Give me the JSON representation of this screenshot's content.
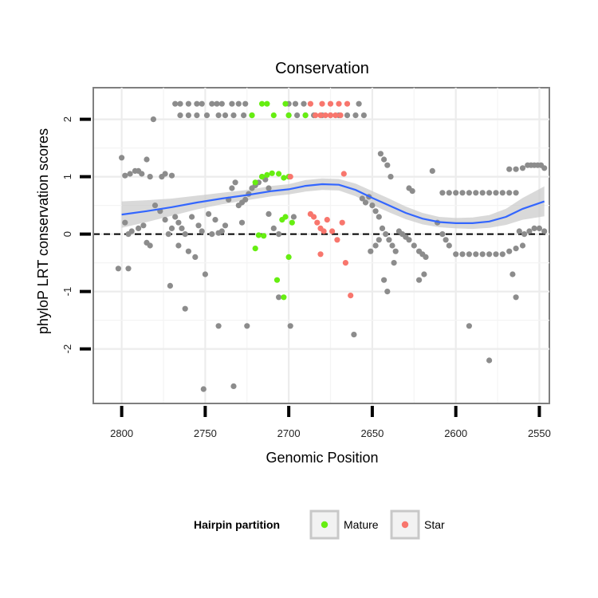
{
  "chart_data": {
    "type": "scatter",
    "title": "Conservation",
    "xlabel": "Genomic Position",
    "ylabel": "phyloP LRT conservation scores",
    "x_reversed": true,
    "xlim": [
      2817,
      2544
    ],
    "ylim": [
      -2.95,
      2.55
    ],
    "x_ticks": [
      2800,
      2750,
      2700,
      2650,
      2600,
      2550
    ],
    "y_ticks": [
      2,
      1,
      0,
      -1,
      -2
    ],
    "reference_line": {
      "y": 0,
      "style": "dashed"
    },
    "legend": {
      "title": "Hairpin partition",
      "position": "bottom",
      "entries": [
        {
          "label": "Mature",
          "color": "#66ee11"
        },
        {
          "label": "Star",
          "color": "#f8766d"
        }
      ]
    },
    "colors": {
      "other": "#8c8c8c",
      "Mature": "#66ee11",
      "Star": "#f8766d",
      "smooth": "#3366ff",
      "ribbon": "#cccccc"
    },
    "series": [
      {
        "name": "Other",
        "points": [
          [
            2800,
            1.33
          ],
          [
            2798,
            1.02
          ],
          [
            2795,
            1.05
          ],
          [
            2792,
            1.1
          ],
          [
            2790,
            1.1
          ],
          [
            2788,
            1.05
          ],
          [
            2785,
            1.3
          ],
          [
            2783,
            1.0
          ],
          [
            2781,
            2.0
          ],
          [
            2776,
            1.0
          ],
          [
            2774,
            1.05
          ],
          [
            2770,
            1.02
          ],
          [
            2798,
            0.2
          ],
          [
            2796,
            0.0
          ],
          [
            2794,
            0.05
          ],
          [
            2790,
            0.1
          ],
          [
            2787,
            0.15
          ],
          [
            2785,
            -0.15
          ],
          [
            2783,
            -0.2
          ],
          [
            2780,
            0.5
          ],
          [
            2777,
            0.4
          ],
          [
            2774,
            0.25
          ],
          [
            2772,
            0.0
          ],
          [
            2770,
            0.1
          ],
          [
            2768,
            0.3
          ],
          [
            2766,
            0.2
          ],
          [
            2764,
            0.1
          ],
          [
            2762,
            0.0
          ],
          [
            2760,
            -0.3
          ],
          [
            2758,
            0.3
          ],
          [
            2756,
            -0.4
          ],
          [
            2754,
            0.15
          ],
          [
            2752,
            0.05
          ],
          [
            2750,
            -0.7
          ],
          [
            2748,
            0.35
          ],
          [
            2746,
            0.0
          ],
          [
            2744,
            0.25
          ],
          [
            2742,
            0.02
          ],
          [
            2740,
            0.05
          ],
          [
            2738,
            0.15
          ],
          [
            2736,
            0.6
          ],
          [
            2734,
            0.8
          ],
          [
            2732,
            0.9
          ],
          [
            2730,
            0.5
          ],
          [
            2728,
            0.55
          ],
          [
            2726,
            0.6
          ],
          [
            2724,
            0.7
          ],
          [
            2722,
            0.8
          ],
          [
            2720,
            0.85
          ],
          [
            2718,
            0.9
          ],
          [
            2716,
            1.0
          ],
          [
            2714,
            0.95
          ],
          [
            2712,
            0.8
          ],
          [
            2802,
            -0.6
          ],
          [
            2796,
            -0.6
          ],
          [
            2771,
            -0.9
          ],
          [
            2762,
            -1.3
          ],
          [
            2742,
            -1.6
          ],
          [
            2706,
            -1.1
          ],
          [
            2699,
            -1.6
          ],
          [
            2661,
            -1.75
          ],
          [
            2751,
            -2.7
          ],
          [
            2768,
            2.27
          ],
          [
            2765,
            2.27
          ],
          [
            2760,
            2.27
          ],
          [
            2755,
            2.27
          ],
          [
            2752,
            2.27
          ],
          [
            2746,
            2.27
          ],
          [
            2743,
            2.27
          ],
          [
            2740,
            2.27
          ],
          [
            2734,
            2.27
          ],
          [
            2730,
            2.27
          ],
          [
            2726,
            2.27
          ],
          [
            2765,
            2.07
          ],
          [
            2760,
            2.07
          ],
          [
            2755,
            2.07
          ],
          [
            2749,
            2.07
          ],
          [
            2742,
            2.07
          ],
          [
            2738,
            2.07
          ],
          [
            2733,
            2.07
          ],
          [
            2727,
            2.07
          ],
          [
            2722,
            2.07
          ],
          [
            2700,
            2.07
          ],
          [
            2695,
            2.07
          ],
          [
            2690,
            2.07
          ],
          [
            2685,
            2.07
          ],
          [
            2680,
            2.07
          ],
          [
            2675,
            2.07
          ],
          [
            2670,
            2.07
          ],
          [
            2665,
            2.07
          ],
          [
            2660,
            2.07
          ],
          [
            2655,
            2.07
          ],
          [
            2700,
            2.27
          ],
          [
            2696,
            2.27
          ],
          [
            2691,
            2.27
          ],
          [
            2658,
            2.27
          ],
          [
            2656,
            0.62
          ],
          [
            2654,
            0.55
          ],
          [
            2652,
            0.65
          ],
          [
            2650,
            0.5
          ],
          [
            2648,
            0.4
          ],
          [
            2646,
            0.3
          ],
          [
            2644,
            0.1
          ],
          [
            2642,
            0.0
          ],
          [
            2640,
            -0.1
          ],
          [
            2638,
            -0.2
          ],
          [
            2636,
            -0.3
          ],
          [
            2651,
            -0.3
          ],
          [
            2648,
            -0.2
          ],
          [
            2646,
            -0.1
          ],
          [
            2645,
            1.4
          ],
          [
            2643,
            1.3
          ],
          [
            2641,
            1.2
          ],
          [
            2639,
            1.0
          ],
          [
            2643,
            -0.8
          ],
          [
            2641,
            -1.0
          ],
          [
            2637,
            -0.5
          ],
          [
            2634,
            0.05
          ],
          [
            2632,
            0.0
          ],
          [
            2630,
            -0.05
          ],
          [
            2628,
            -0.1
          ],
          [
            2625,
            -0.2
          ],
          [
            2622,
            -0.3
          ],
          [
            2620,
            -0.35
          ],
          [
            2618,
            -0.4
          ],
          [
            2628,
            0.8
          ],
          [
            2626,
            0.75
          ],
          [
            2622,
            -0.8
          ],
          [
            2619,
            -0.7
          ],
          [
            2614,
            1.1
          ],
          [
            2611,
            0.2
          ],
          [
            2608,
            0.0
          ],
          [
            2606,
            -0.1
          ],
          [
            2604,
            -0.2
          ],
          [
            2600,
            -0.35
          ],
          [
            2596,
            -0.35
          ],
          [
            2592,
            -0.35
          ],
          [
            2588,
            -0.35
          ],
          [
            2584,
            -0.35
          ],
          [
            2580,
            -0.35
          ],
          [
            2576,
            -0.35
          ],
          [
            2572,
            -0.35
          ],
          [
            2568,
            -0.3
          ],
          [
            2564,
            -0.25
          ],
          [
            2560,
            -0.2
          ],
          [
            2608,
            0.72
          ],
          [
            2604,
            0.72
          ],
          [
            2600,
            0.72
          ],
          [
            2596,
            0.72
          ],
          [
            2592,
            0.72
          ],
          [
            2588,
            0.72
          ],
          [
            2584,
            0.72
          ],
          [
            2580,
            0.72
          ],
          [
            2576,
            0.72
          ],
          [
            2572,
            0.72
          ],
          [
            2568,
            0.72
          ],
          [
            2564,
            0.72
          ],
          [
            2592,
            -1.6
          ],
          [
            2580,
            -2.2
          ],
          [
            2568,
            1.13
          ],
          [
            2564,
            1.13
          ],
          [
            2560,
            1.15
          ],
          [
            2557,
            1.2
          ],
          [
            2555,
            1.2
          ],
          [
            2553,
            1.2
          ],
          [
            2551,
            1.2
          ],
          [
            2549,
            1.2
          ],
          [
            2547,
            1.15
          ],
          [
            2566,
            -0.7
          ],
          [
            2564,
            -1.1
          ],
          [
            2562,
            0.05
          ],
          [
            2559,
            0.0
          ],
          [
            2556,
            0.05
          ],
          [
            2553,
            0.1
          ],
          [
            2550,
            0.1
          ],
          [
            2547,
            0.05
          ],
          [
            2766,
            -0.2
          ],
          [
            2733,
            -2.65
          ],
          [
            2725,
            -1.6
          ],
          [
            2709,
            0.1
          ],
          [
            2706,
            0.0
          ],
          [
            2728,
            0.2
          ],
          [
            2712,
            0.35
          ],
          [
            2697,
            0.3
          ]
        ]
      },
      {
        "name": "Mature",
        "points": [
          [
            2722,
            2.07
          ],
          [
            2716,
            2.27
          ],
          [
            2713,
            2.27
          ],
          [
            2709,
            2.07
          ],
          [
            2702,
            2.27
          ],
          [
            2700,
            2.07
          ],
          [
            2690,
            2.07
          ],
          [
            2720,
            0.9
          ],
          [
            2716,
            1.0
          ],
          [
            2713,
            1.03
          ],
          [
            2710,
            1.06
          ],
          [
            2706,
            1.05
          ],
          [
            2703,
            0.98
          ],
          [
            2700,
            1.0
          ],
          [
            2718,
            -0.02
          ],
          [
            2715,
            -0.03
          ],
          [
            2720,
            -0.25
          ],
          [
            2707,
            -0.8
          ],
          [
            2704,
            0.25
          ],
          [
            2702,
            0.3
          ],
          [
            2698,
            0.2
          ],
          [
            2703,
            -1.1
          ],
          [
            2700,
            -0.4
          ]
        ]
      },
      {
        "name": "Star",
        "points": [
          [
            2687,
            2.27
          ],
          [
            2680,
            2.27
          ],
          [
            2675,
            2.27
          ],
          [
            2670,
            2.27
          ],
          [
            2665,
            2.27
          ],
          [
            2684,
            2.07
          ],
          [
            2681,
            2.07
          ],
          [
            2678,
            2.07
          ],
          [
            2675,
            2.07
          ],
          [
            2672,
            2.07
          ],
          [
            2669,
            2.07
          ],
          [
            2699,
            1.0
          ],
          [
            2667,
            1.05
          ],
          [
            2687,
            0.35
          ],
          [
            2685,
            0.3
          ],
          [
            2683,
            0.2
          ],
          [
            2681,
            0.1
          ],
          [
            2679,
            0.05
          ],
          [
            2677,
            0.25
          ],
          [
            2674,
            0.05
          ],
          [
            2671,
            -0.1
          ],
          [
            2668,
            0.2
          ],
          [
            2666,
            -0.5
          ],
          [
            2663,
            -1.07
          ],
          [
            2681,
            -0.35
          ]
        ]
      }
    ],
    "smooth": [
      [
        2800,
        0.34
      ],
      [
        2785,
        0.4
      ],
      [
        2770,
        0.47
      ],
      [
        2755,
        0.55
      ],
      [
        2740,
        0.62
      ],
      [
        2725,
        0.68
      ],
      [
        2710,
        0.75
      ],
      [
        2700,
        0.78
      ],
      [
        2690,
        0.84
      ],
      [
        2680,
        0.87
      ],
      [
        2670,
        0.86
      ],
      [
        2660,
        0.77
      ],
      [
        2650,
        0.63
      ],
      [
        2640,
        0.5
      ],
      [
        2630,
        0.37
      ],
      [
        2620,
        0.27
      ],
      [
        2610,
        0.21
      ],
      [
        2600,
        0.19
      ],
      [
        2590,
        0.19
      ],
      [
        2580,
        0.22
      ],
      [
        2570,
        0.3
      ],
      [
        2560,
        0.44
      ],
      [
        2547,
        0.57
      ]
    ],
    "ribbon_halfwidth": [
      0.23,
      0.19,
      0.15,
      0.12,
      0.1,
      0.09,
      0.09,
      0.09,
      0.1,
      0.1,
      0.1,
      0.11,
      0.12,
      0.12,
      0.11,
      0.1,
      0.09,
      0.09,
      0.1,
      0.11,
      0.14,
      0.19,
      0.26
    ]
  }
}
